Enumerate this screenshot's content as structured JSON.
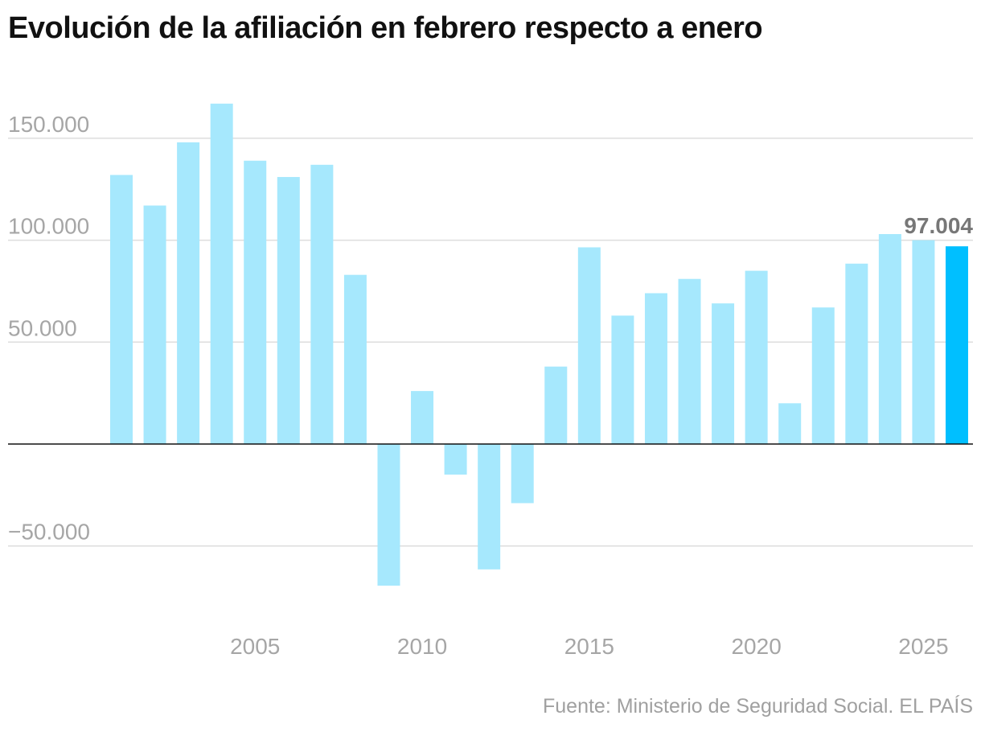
{
  "chart_data": {
    "type": "bar",
    "title": "Evolución de la afiliación en febrero respecto a enero",
    "source": "Fuente: Ministerio de Seguridad Social. EL PAÍS",
    "xlabel": "",
    "ylabel": "",
    "ylim": [
      -70000,
      170000
    ],
    "grid": true,
    "y_ticks": [
      {
        "value": 150000,
        "label": "150.000"
      },
      {
        "value": 100000,
        "label": "100.000"
      },
      {
        "value": 50000,
        "label": "50.000"
      },
      {
        "value": -50000,
        "label": "−50.000"
      }
    ],
    "x_ticks": [
      {
        "value": 2005,
        "label": "2005"
      },
      {
        "value": 2010,
        "label": "2010"
      },
      {
        "value": 2015,
        "label": "2015"
      },
      {
        "value": 2020,
        "label": "2020"
      },
      {
        "value": 2025,
        "label": "2025"
      }
    ],
    "categories": [
      2001,
      2002,
      2003,
      2004,
      2005,
      2006,
      2007,
      2008,
      2009,
      2010,
      2011,
      2012,
      2013,
      2014,
      2015,
      2016,
      2017,
      2018,
      2019,
      2020,
      2021,
      2022,
      2023,
      2024,
      2025,
      2026
    ],
    "values": [
      132000,
      117000,
      148000,
      167000,
      139000,
      131000,
      137000,
      83000,
      -69500,
      26000,
      -15000,
      -61500,
      -29000,
      38000,
      96500,
      63000,
      74000,
      81000,
      69000,
      85000,
      20000,
      67000,
      88500,
      103000,
      100000,
      97004
    ],
    "highlight": {
      "category": 2026,
      "label": "97.004"
    },
    "colors": {
      "bar": "#a6e8fd",
      "highlight": "#00bfff",
      "grid": "#dddddd",
      "zero_line": "#111111"
    }
  }
}
